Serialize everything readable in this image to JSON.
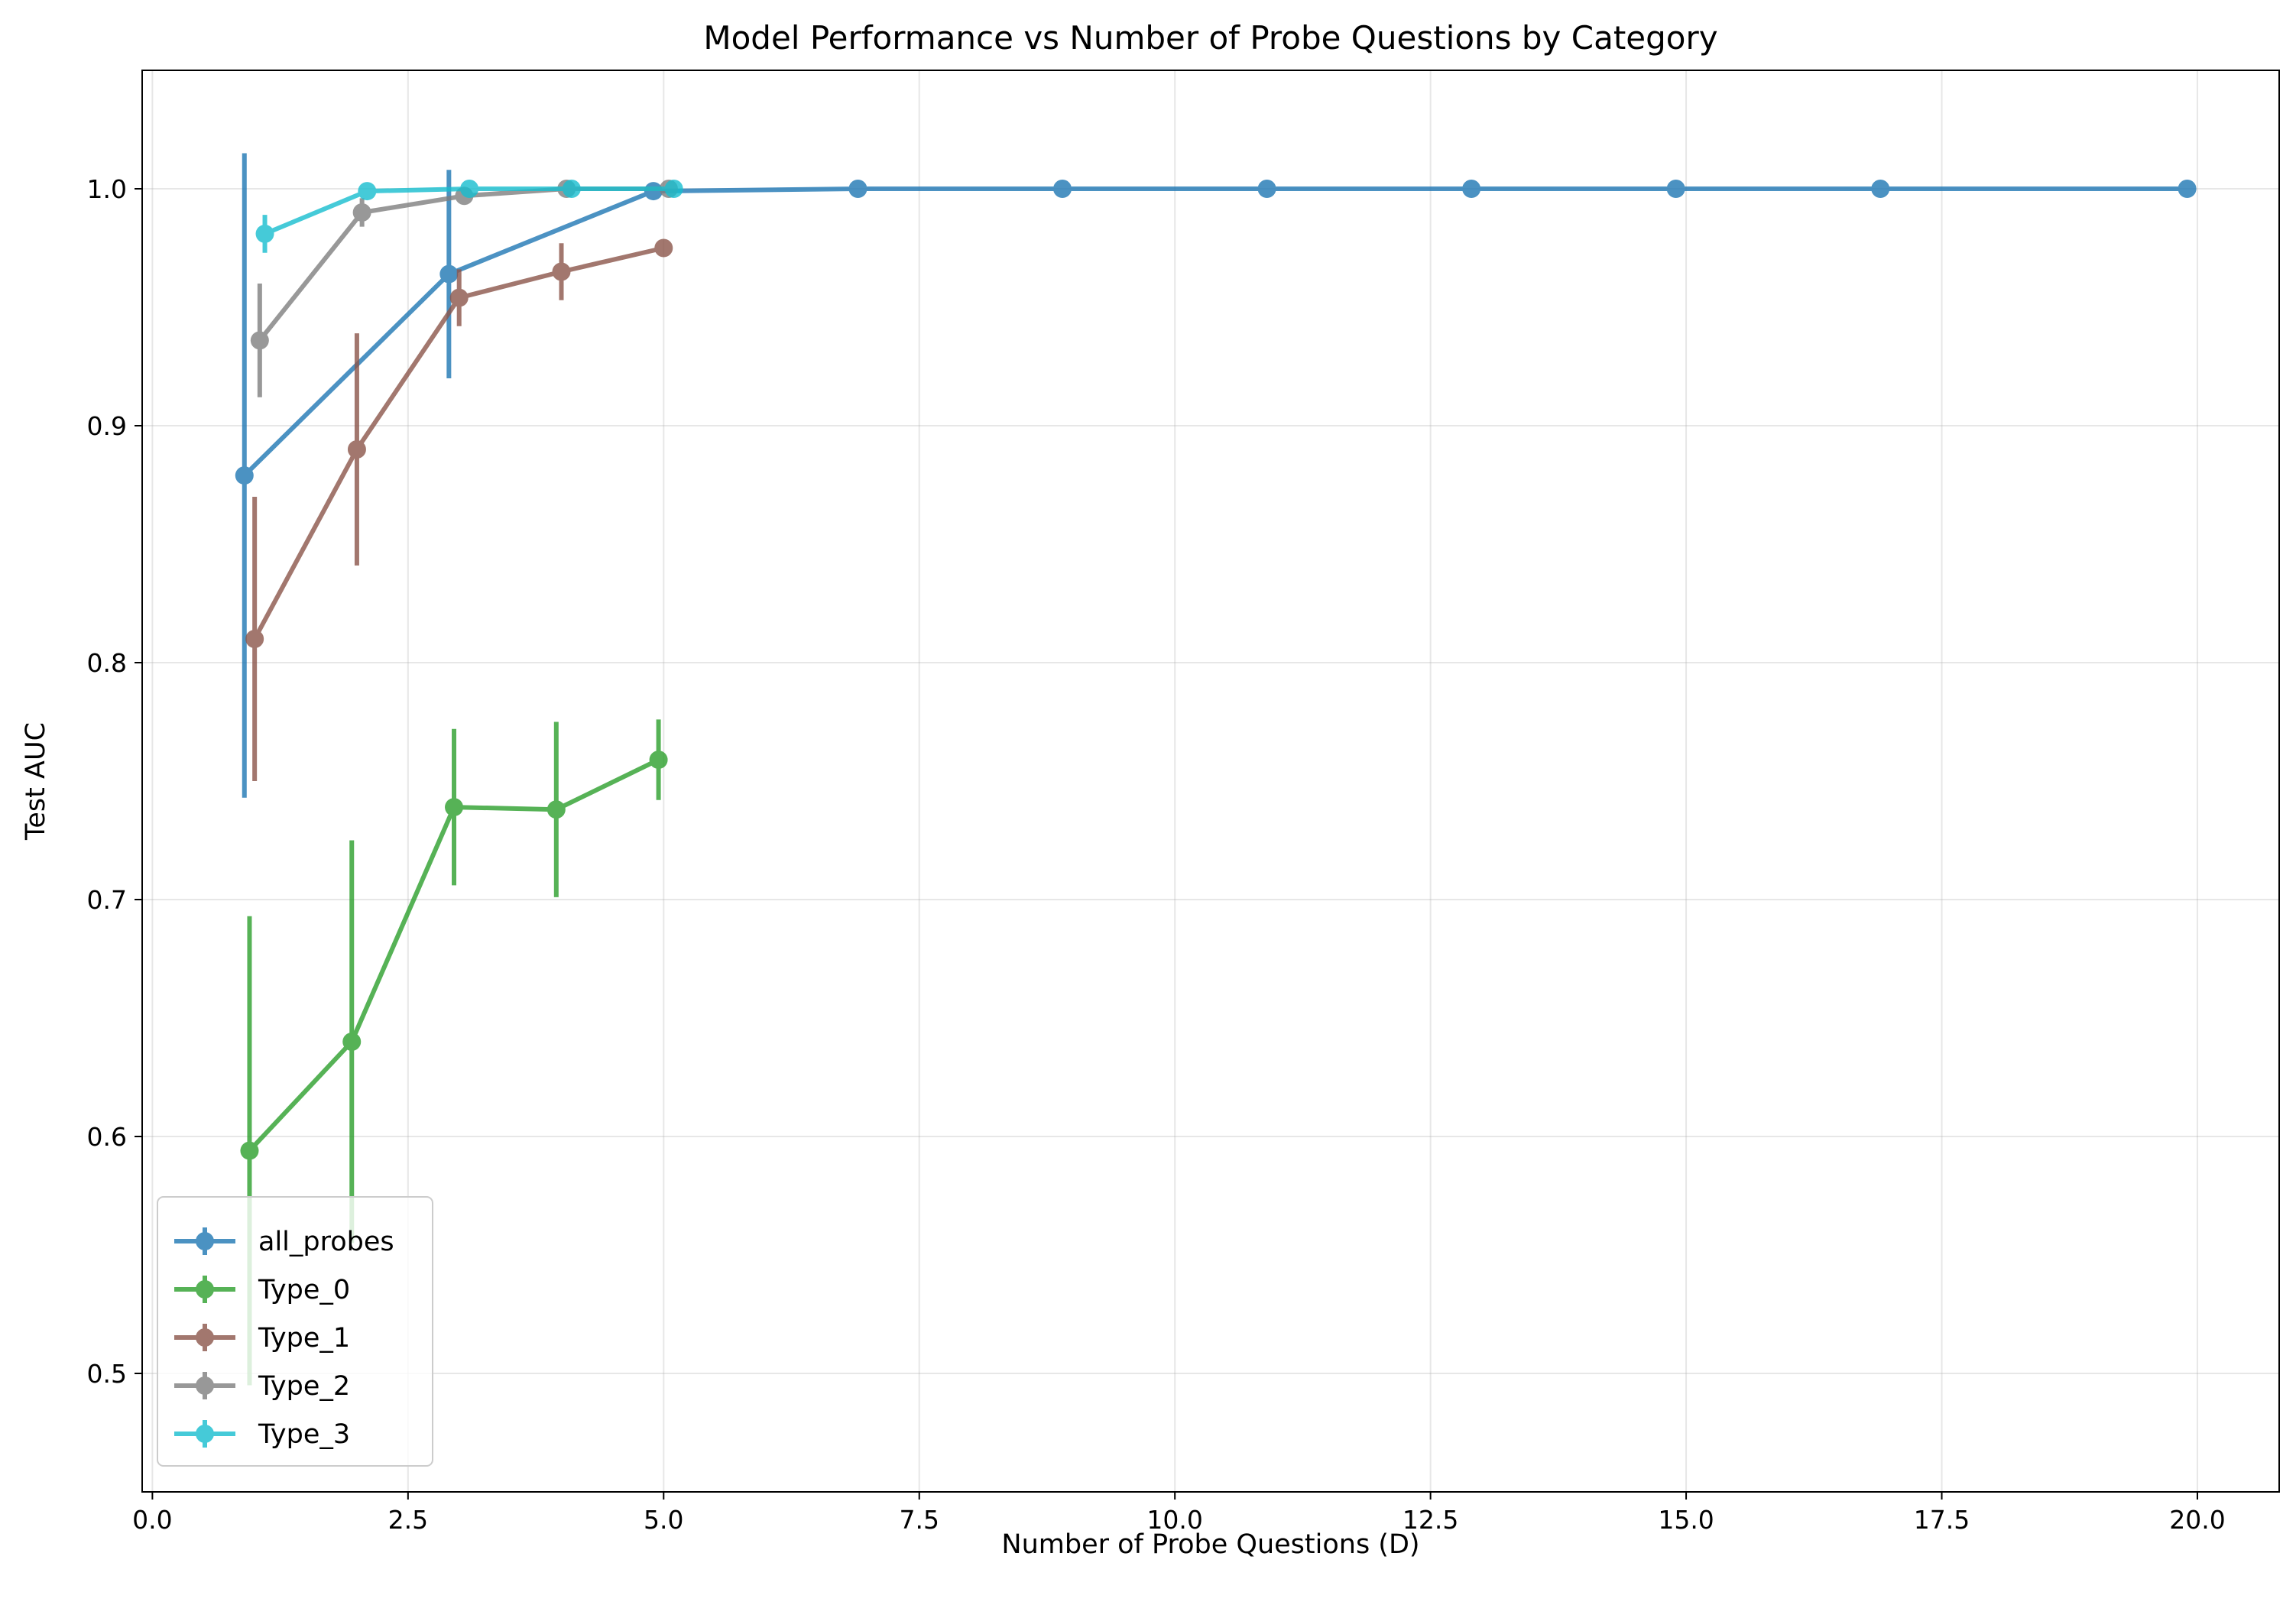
{
  "chart_data": {
    "type": "line",
    "title": "Model Performance vs Number of Probe Questions by Category",
    "xlabel": "Number of Probe Questions (D)",
    "ylabel": "Test AUC",
    "xlim": [
      -0.1,
      20.8
    ],
    "ylim": [
      0.45,
      1.05
    ],
    "xticks": [
      0.0,
      2.5,
      5.0,
      7.5,
      10.0,
      12.5,
      15.0,
      17.5,
      20.0
    ],
    "xtick_labels": [
      "0.0",
      "2.5",
      "5.0",
      "7.5",
      "10.0",
      "12.5",
      "15.0",
      "17.5",
      "20.0"
    ],
    "yticks": [
      0.5,
      0.6,
      0.7,
      0.8,
      0.9,
      1.0
    ],
    "ytick_labels": [
      "0.5",
      "0.6",
      "0.7",
      "0.8",
      "0.9",
      "1.0"
    ],
    "grid": true,
    "legend_position": "lower-left",
    "series": [
      {
        "name": "all_probes",
        "color": "#1f77b4",
        "x": [
          0.9,
          2.9,
          4.9,
          6.9,
          8.9,
          10.9,
          12.9,
          14.9,
          16.9,
          19.9
        ],
        "y": [
          0.879,
          0.964,
          0.999,
          1.0,
          1.0,
          1.0,
          1.0,
          1.0,
          1.0,
          1.0
        ],
        "err": [
          0.136,
          0.044,
          0.0,
          0.0,
          0.0,
          0.0,
          0.0,
          0.0,
          0.0,
          0.0
        ]
      },
      {
        "name": "Type_0",
        "color": "#2ca02c",
        "x": [
          0.95,
          1.95,
          2.95,
          3.95,
          4.95
        ],
        "y": [
          0.594,
          0.64,
          0.739,
          0.738,
          0.759
        ],
        "err": [
          0.099,
          0.085,
          0.033,
          0.037,
          0.017
        ]
      },
      {
        "name": "Type_1",
        "color": "#8c564b",
        "x": [
          1.0,
          2.0,
          3.0,
          4.0,
          5.0
        ],
        "y": [
          0.81,
          0.89,
          0.954,
          0.965,
          0.975
        ],
        "err": [
          0.06,
          0.049,
          0.012,
          0.012,
          0.0
        ]
      },
      {
        "name": "Type_2",
        "color": "#7f7f7f",
        "x": [
          1.05,
          2.05,
          3.05,
          4.05,
          5.05
        ],
        "y": [
          0.936,
          0.99,
          0.997,
          1.0,
          1.0
        ],
        "err": [
          0.024,
          0.006,
          0.0,
          0.0,
          0.0
        ]
      },
      {
        "name": "Type_3",
        "color": "#17becf",
        "x": [
          1.1,
          2.1,
          3.1,
          4.1,
          5.1
        ],
        "y": [
          0.981,
          0.999,
          1.0,
          1.0,
          1.0
        ],
        "err": [
          0.008,
          0.0,
          0.0,
          0.0,
          0.0
        ]
      }
    ]
  }
}
